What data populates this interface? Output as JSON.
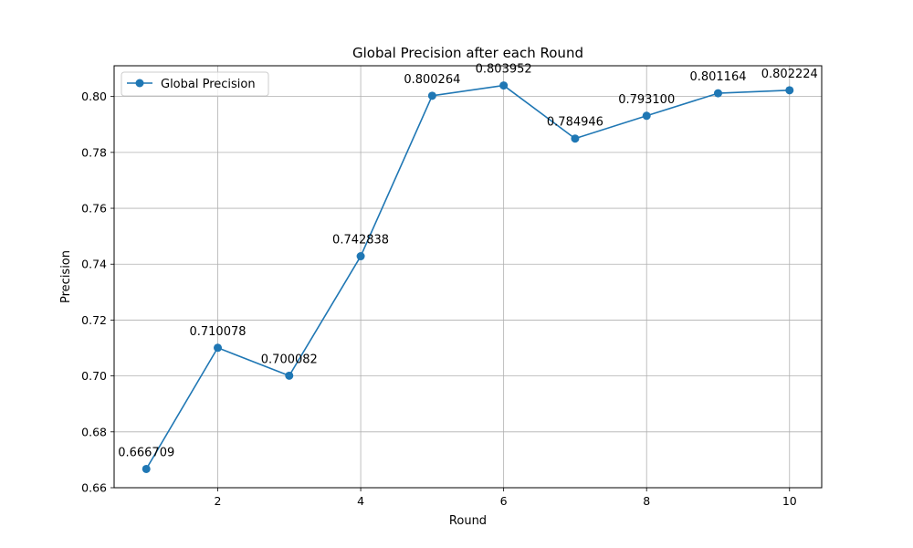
{
  "chart_data": {
    "type": "line",
    "title": "Global Precision after each Round",
    "xlabel": "Round",
    "ylabel": "Precision",
    "x": [
      1,
      2,
      3,
      4,
      5,
      6,
      7,
      8,
      9,
      10
    ],
    "series": [
      {
        "name": "Global Precision",
        "color": "#1f77b4",
        "values": [
          0.666709,
          0.710078,
          0.700082,
          0.742838,
          0.800264,
          0.803952,
          0.784946,
          0.7931,
          0.801164,
          0.802224
        ],
        "labels": [
          "0.666709",
          "0.710078",
          "0.700082",
          "0.742838",
          "0.800264",
          "0.803952",
          "0.784946",
          "0.793100",
          "0.801164",
          "0.802224"
        ]
      }
    ],
    "xlim": [
      0.55,
      10.45
    ],
    "ylim": [
      0.66,
      0.811
    ],
    "xticks": [
      2,
      4,
      6,
      8,
      10
    ],
    "xtick_labels": [
      "2",
      "4",
      "6",
      "8",
      "10"
    ],
    "yticks": [
      0.66,
      0.68,
      0.7,
      0.72,
      0.74,
      0.76,
      0.78,
      0.8
    ],
    "ytick_labels": [
      "0.66",
      "0.68",
      "0.70",
      "0.72",
      "0.74",
      "0.76",
      "0.78",
      "0.80"
    ],
    "grid": true,
    "legend": "upper-left"
  }
}
